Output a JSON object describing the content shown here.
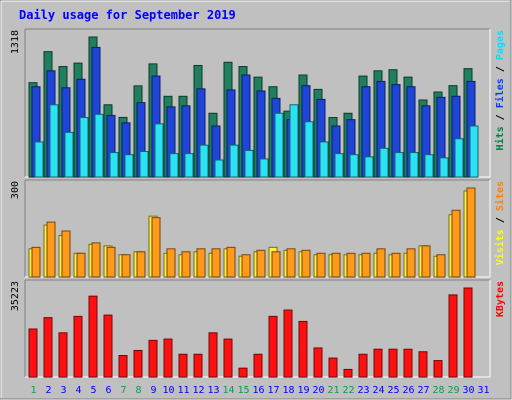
{
  "chart_data": {
    "type": "bar",
    "title": "Daily usage for September 2019",
    "categories": [
      "1",
      "2",
      "3",
      "4",
      "5",
      "6",
      "7",
      "8",
      "9",
      "10",
      "11",
      "12",
      "13",
      "14",
      "15",
      "16",
      "17",
      "18",
      "19",
      "20",
      "21",
      "22",
      "23",
      "24",
      "25",
      "26",
      "27",
      "28",
      "29",
      "30",
      "31"
    ],
    "weekend_days": [
      1,
      7,
      8,
      14,
      15,
      21,
      22,
      28,
      29
    ],
    "panels": [
      {
        "id": "hits-files-pages",
        "max_label": "1318",
        "ymax": 1318,
        "legend": [
          {
            "label": "Hits",
            "color": "#008040"
          },
          {
            "label": "Files",
            "color": "#0040FF"
          },
          {
            "label": "Pages",
            "color": "#00E0FF"
          }
        ],
        "series": [
          {
            "name": "Hits",
            "color": "#1F7F5F",
            "values": [
              888,
              1180,
              1040,
              1072,
              1318,
              680,
              561,
              858,
              1065,
              760,
              760,
              1050,
              600,
              1080,
              1040,
              940,
              850,
              620,
              960,
              825,
              560,
              600,
              950,
              1000,
              1010,
              940,
              725,
              800,
              860,
              1020,
              0
            ]
          },
          {
            "name": "Files",
            "color": "#1F45D8",
            "values": [
              850,
              1000,
              840,
              920,
              1220,
              580,
              510,
              700,
              950,
              660,
              670,
              830,
              480,
              820,
              960,
              810,
              740,
              540,
              860,
              730,
              480,
              540,
              850,
              900,
              870,
              850,
              670,
              750,
              760,
              900,
              0
            ]
          },
          {
            "name": "Pages",
            "color": "#2BE2F2",
            "values": [
              330,
              680,
              420,
              560,
              590,
              230,
              210,
              240,
              500,
              220,
              220,
              300,
              160,
              300,
              250,
              170,
              600,
              680,
              520,
              330,
              220,
              210,
              190,
              270,
              230,
              230,
              210,
              180,
              360,
              480,
              0
            ]
          }
        ]
      },
      {
        "id": "visits-sites",
        "max_label": "300",
        "ymax": 300,
        "legend": [
          {
            "label": "Visits",
            "color": "#FFFF00"
          },
          {
            "label": "Sites",
            "color": "#FF8000"
          }
        ],
        "series": [
          {
            "name": "Visits",
            "color": "#FFF040",
            "values": [
              95,
              175,
              140,
              80,
              110,
              105,
              75,
              85,
              205,
              80,
              75,
              85,
              80,
              95,
              70,
              85,
              100,
              90,
              85,
              75,
              75,
              75,
              75,
              80,
              75,
              80,
              105,
              70,
              210,
              290,
              0
            ]
          },
          {
            "name": "Sites",
            "color": "#FF9A1A",
            "values": [
              100,
              185,
              155,
              80,
              115,
              100,
              75,
              85,
              200,
              95,
              85,
              95,
              95,
              100,
              75,
              90,
              85,
              95,
              90,
              80,
              80,
              80,
              80,
              95,
              80,
              95,
              105,
              75,
              225,
              300,
              0
            ]
          }
        ]
      },
      {
        "id": "kbytes",
        "max_label": "35223",
        "ymax": 35223,
        "legend": [
          {
            "label": "KBytes",
            "color": "#FF0000"
          }
        ],
        "series": [
          {
            "name": "KBytes",
            "color": "#FF1010",
            "values": [
              19000,
              23500,
              17500,
              24000,
              32000,
              24500,
              8500,
              10500,
              14500,
              15000,
              9000,
              9000,
              17500,
              15000,
              3500,
              9000,
              24000,
              26500,
              22000,
              11500,
              7500,
              3000,
              9000,
              11000,
              11000,
              11000,
              10000,
              6500,
              32500,
              35223,
              0
            ]
          }
        ]
      }
    ],
    "colors": {
      "background": "#C0C0C0",
      "title": "#0000FF",
      "weekday_label": "#0000FF",
      "weekend_label": "#00A050"
    }
  }
}
